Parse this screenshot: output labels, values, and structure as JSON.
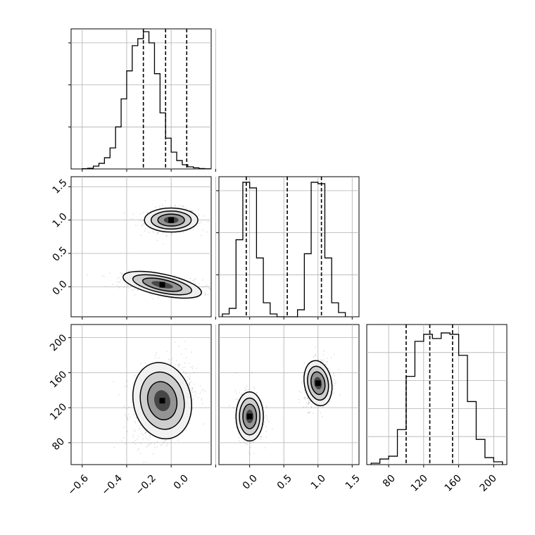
{
  "chart_data": [
    {
      "panel": "hist-p1",
      "type": "histogram",
      "xlim": [
        -0.65,
        -0.02
      ],
      "ylim": [
        0,
        1.0
      ],
      "bins_x": [
        -0.6,
        -0.575,
        -0.55,
        -0.525,
        -0.5,
        -0.475,
        -0.45,
        -0.425,
        -0.4,
        -0.375,
        -0.35,
        -0.325,
        -0.3,
        -0.275,
        -0.25,
        -0.225,
        -0.2,
        -0.175,
        -0.15,
        -0.125,
        -0.1,
        -0.075,
        -0.05,
        -0.025,
        0.0,
        0.025,
        0.05
      ],
      "counts": [
        0.002,
        0.005,
        0.02,
        0.04,
        0.08,
        0.15,
        0.3,
        0.5,
        0.7,
        0.88,
        0.93,
        0.98,
        0.9,
        0.68,
        0.4,
        0.22,
        0.12,
        0.06,
        0.03,
        0.015,
        0.008,
        0.003,
        0.001
      ],
      "quantile_lines": [
        -0.325,
        -0.225,
        -0.13
      ],
      "grid": true
    },
    {
      "panel": "scatter-p2-vs-p1",
      "type": "scatter-density",
      "xlim": [
        -0.65,
        -0.02
      ],
      "ylim": [
        -0.45,
        1.65
      ],
      "yticks": [
        0.0,
        0.5,
        1.0,
        1.5
      ],
      "grid": true
    },
    {
      "panel": "hist-p2",
      "type": "histogram",
      "xlim": [
        -0.45,
        1.6
      ],
      "ylim": [
        0,
        1.0
      ],
      "bins_x": [
        -0.4,
        -0.3,
        -0.2,
        -0.1,
        0.0,
        0.1,
        0.2,
        0.3,
        0.4,
        0.5,
        0.6,
        0.7,
        0.8,
        0.9,
        1.0,
        1.1,
        1.2,
        1.3,
        1.4
      ],
      "counts": [
        0.02,
        0.06,
        0.55,
        0.96,
        0.92,
        0.42,
        0.1,
        0.02,
        0.0,
        0.0,
        0.0,
        0.05,
        0.45,
        0.96,
        0.95,
        0.42,
        0.1,
        0.03
      ],
      "quantile_lines": [
        -0.05,
        0.55,
        1.05
      ],
      "grid": true
    },
    {
      "panel": "scatter-p3-vs-p1",
      "type": "scatter-density",
      "xlim": [
        -0.65,
        -0.02
      ],
      "ylim": [
        55,
        215
      ],
      "xticks": [
        -0.6,
        -0.4,
        -0.2,
        0.0
      ],
      "yticks": [
        80,
        120,
        160,
        200
      ],
      "grid": true
    },
    {
      "panel": "scatter-p3-vs-p2",
      "type": "scatter-density",
      "xlim": [
        -0.45,
        1.6
      ],
      "ylim": [
        55,
        215
      ],
      "xticks": [
        0.0,
        0.5,
        1.0,
        1.5
      ],
      "grid": true
    },
    {
      "panel": "hist-p3",
      "type": "histogram",
      "xlim": [
        55,
        215
      ],
      "ylim": [
        0,
        1.0
      ],
      "bins_x": [
        60,
        70,
        80,
        90,
        100,
        110,
        120,
        130,
        140,
        150,
        160,
        170,
        180,
        190,
        200,
        210
      ],
      "counts": [
        0.01,
        0.04,
        0.06,
        0.25,
        0.63,
        0.88,
        0.93,
        0.9,
        0.94,
        0.93,
        0.78,
        0.45,
        0.18,
        0.05,
        0.02
      ],
      "quantile_lines": [
        100,
        127,
        153
      ],
      "xticks": [
        80,
        120,
        160,
        200
      ],
      "grid": true
    }
  ],
  "tick_labels": {
    "p1_x": [
      "−0.6",
      "−0.4",
      "−0.2",
      "0.0"
    ],
    "p2_y": [
      "0.0",
      "0.5",
      "1.0",
      "1.5"
    ],
    "p2_x": [
      "0.0",
      "0.5",
      "1.0",
      "1.5"
    ],
    "p3_y": [
      "80",
      "120",
      "160",
      "200"
    ],
    "p3_x": [
      "80",
      "120",
      "160",
      "200"
    ]
  }
}
